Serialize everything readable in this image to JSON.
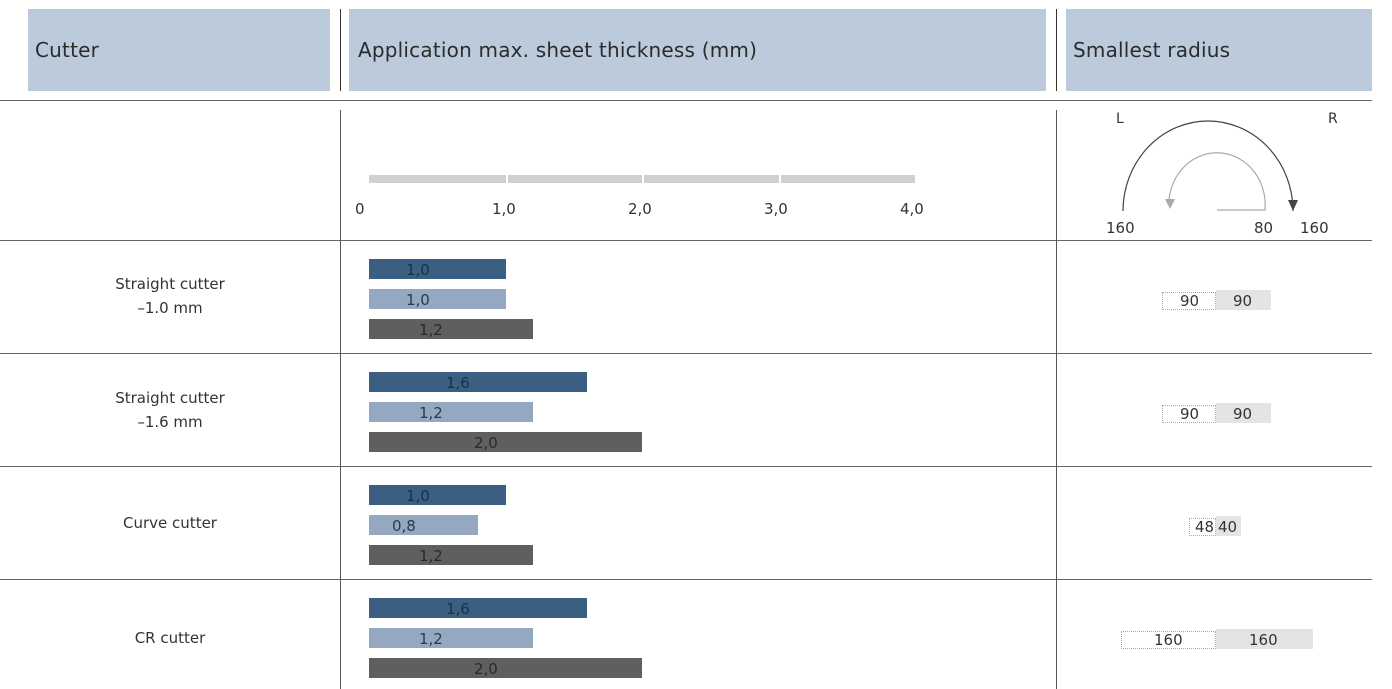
{
  "header": {
    "cutter": "Cutter",
    "application": "Application max. sheet thickness (mm)",
    "radius": "Smallest radius"
  },
  "colors": {
    "header_bg": "#bccbdb",
    "series_1": "#3b5f82",
    "series_2": "#94a9c1",
    "series_3": "#5f5e60",
    "axis_bar": "#d0d0d0"
  },
  "chart_data": {
    "type": "bar",
    "orientation": "horizontal",
    "xlim": [
      0,
      4.0
    ],
    "ticks": [
      "0",
      "1,0",
      "2,0",
      "3,0",
      "4,0"
    ],
    "legend": "none",
    "categories": [
      "Straight cutter –1.0 mm",
      "Straight cutter –1.6 mm",
      "Curve cutter",
      "CR cutter"
    ],
    "series": [
      {
        "values": [
          1.0,
          1.6,
          1.0,
          1.6
        ],
        "labels": [
          "1,0",
          "1,6",
          "1,0",
          "1,6"
        ]
      },
      {
        "values": [
          1.0,
          1.2,
          0.8,
          1.2
        ],
        "labels": [
          "1,0",
          "1,2",
          "0,8",
          "1,2"
        ]
      },
      {
        "values": [
          1.2,
          2.0,
          1.2,
          2.0
        ],
        "labels": [
          "1,2",
          "2,0",
          "1,2",
          "2,0"
        ]
      }
    ]
  },
  "rows": [
    {
      "line1": "Straight cutter",
      "line2": "–1.0 mm",
      "radius_left": "90",
      "radius_right": "90"
    },
    {
      "line1": "Straight cutter",
      "line2": "–1.6 mm",
      "radius_left": "90",
      "radius_right": "90"
    },
    {
      "line1": "Curve cutter",
      "line2": "",
      "radius_left": "48",
      "radius_right": "40"
    },
    {
      "line1": "CR cutter",
      "line2": "",
      "radius_left": "160",
      "radius_right": "160"
    }
  ],
  "radius_diagram": {
    "left_label": "L",
    "right_label": "R",
    "bottom_left": "160",
    "bottom_mid": "80",
    "bottom_right": "160"
  }
}
